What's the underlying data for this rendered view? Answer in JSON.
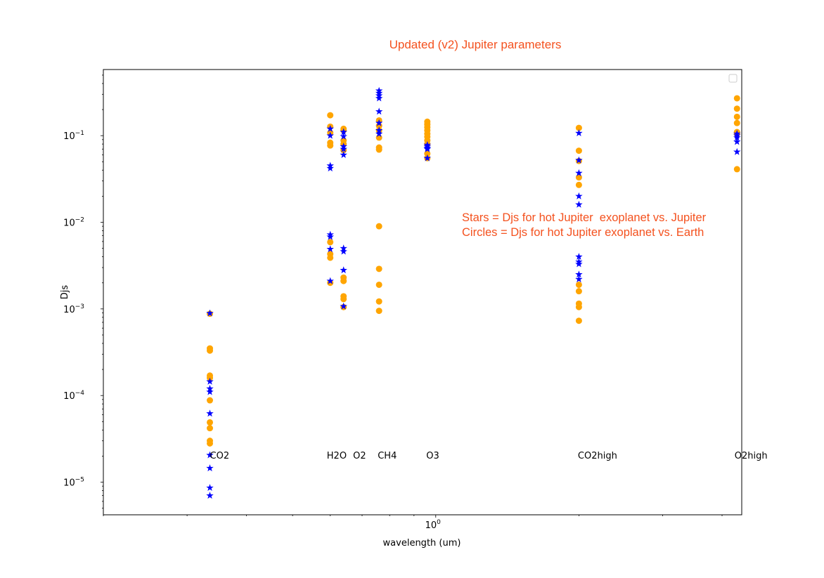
{
  "chart_data": {
    "type": "scatter",
    "title": "Updated (v2) Jupiter parameters",
    "xlabel": "wavelength (um)",
    "ylabel": "Djs",
    "xscale": "log",
    "yscale": "log",
    "xlim": [
      0.2,
      4.4
    ],
    "ylim": [
      4.2e-06,
      0.58
    ],
    "x_tick_labels": [
      {
        "value": 1,
        "base": "10",
        "exp": "0"
      }
    ],
    "y_tick_labels": [
      {
        "value": 0.1,
        "base": "10",
        "exp": "−1"
      },
      {
        "value": 0.01,
        "base": "10",
        "exp": "−2"
      },
      {
        "value": 0.001,
        "base": "10",
        "exp": "−3"
      },
      {
        "value": 0.0001,
        "base": "10",
        "exp": "−4"
      },
      {
        "value": 1e-05,
        "base": "10",
        "exp": "−5"
      }
    ],
    "legend": "top-right, empty",
    "grid": false,
    "annotations": [
      {
        "text": "Stars = Djs for hot Jupiter  exoplanet vs. Jupiter"
      },
      {
        "text": "Circles = Djs for hot Jupiter exoplanet vs. Earth"
      }
    ],
    "gas_labels": [
      {
        "text": "CO2",
        "x": 0.335,
        "y": 2.05e-05
      },
      {
        "text": "H2O",
        "x": 0.59,
        "y": 2.05e-05
      },
      {
        "text": "O2",
        "x": 0.67,
        "y": 2.05e-05
      },
      {
        "text": "CH4",
        "x": 0.755,
        "y": 2.05e-05
      },
      {
        "text": "O3",
        "x": 0.955,
        "y": 2.05e-05
      },
      {
        "text": "CO2high",
        "x": 1.99,
        "y": 2.05e-05
      },
      {
        "text": "O2high",
        "x": 4.25,
        "y": 2.05e-05
      }
    ],
    "series": [
      {
        "marker": "circle",
        "color": "#ffa500",
        "points": [
          {
            "x": 0.335,
            "y": 0.00088
          },
          {
            "x": 0.335,
            "y": 0.00035
          },
          {
            "x": 0.335,
            "y": 0.00033
          },
          {
            "x": 0.335,
            "y": 0.00017
          },
          {
            "x": 0.335,
            "y": 0.00016
          },
          {
            "x": 0.335,
            "y": 8.8e-05
          },
          {
            "x": 0.335,
            "y": 4.9e-05
          },
          {
            "x": 0.335,
            "y": 4.2e-05
          },
          {
            "x": 0.335,
            "y": 3e-05
          },
          {
            "x": 0.335,
            "y": 2.8e-05
          },
          {
            "x": 0.6,
            "y": 0.172
          },
          {
            "x": 0.6,
            "y": 0.127
          },
          {
            "x": 0.6,
            "y": 0.108
          },
          {
            "x": 0.6,
            "y": 0.083
          },
          {
            "x": 0.6,
            "y": 0.077
          },
          {
            "x": 0.6,
            "y": 0.0059
          },
          {
            "x": 0.6,
            "y": 0.0043
          },
          {
            "x": 0.6,
            "y": 0.0039
          },
          {
            "x": 0.6,
            "y": 0.002
          },
          {
            "x": 0.64,
            "y": 0.12
          },
          {
            "x": 0.64,
            "y": 0.115
          },
          {
            "x": 0.64,
            "y": 0.088
          },
          {
            "x": 0.64,
            "y": 0.08
          },
          {
            "x": 0.64,
            "y": 0.068
          },
          {
            "x": 0.64,
            "y": 0.0023
          },
          {
            "x": 0.64,
            "y": 0.0021
          },
          {
            "x": 0.64,
            "y": 0.0014
          },
          {
            "x": 0.64,
            "y": 0.0013
          },
          {
            "x": 0.64,
            "y": 0.00105
          },
          {
            "x": 0.76,
            "y": 0.15
          },
          {
            "x": 0.76,
            "y": 0.13
          },
          {
            "x": 0.76,
            "y": 0.115
          },
          {
            "x": 0.76,
            "y": 0.095
          },
          {
            "x": 0.76,
            "y": 0.073
          },
          {
            "x": 0.76,
            "y": 0.069
          },
          {
            "x": 0.76,
            "y": 0.009
          },
          {
            "x": 0.76,
            "y": 0.0029
          },
          {
            "x": 0.76,
            "y": 0.0019
          },
          {
            "x": 0.76,
            "y": 0.00122
          },
          {
            "x": 0.76,
            "y": 0.00095
          },
          {
            "x": 0.96,
            "y": 0.145
          },
          {
            "x": 0.96,
            "y": 0.135
          },
          {
            "x": 0.96,
            "y": 0.125
          },
          {
            "x": 0.96,
            "y": 0.115
          },
          {
            "x": 0.96,
            "y": 0.105
          },
          {
            "x": 0.96,
            "y": 0.097
          },
          {
            "x": 0.96,
            "y": 0.088
          },
          {
            "x": 0.96,
            "y": 0.08
          },
          {
            "x": 0.96,
            "y": 0.062
          },
          {
            "x": 0.96,
            "y": 0.055
          },
          {
            "x": 2.0,
            "y": 0.123
          },
          {
            "x": 2.0,
            "y": 0.067
          },
          {
            "x": 2.0,
            "y": 0.051
          },
          {
            "x": 2.0,
            "y": 0.033
          },
          {
            "x": 2.0,
            "y": 0.027
          },
          {
            "x": 2.0,
            "y": 0.0019
          },
          {
            "x": 2.0,
            "y": 0.0016
          },
          {
            "x": 2.0,
            "y": 0.00115
          },
          {
            "x": 2.0,
            "y": 0.00105
          },
          {
            "x": 2.0,
            "y": 0.00073
          },
          {
            "x": 4.3,
            "y": 0.27
          },
          {
            "x": 4.3,
            "y": 0.205
          },
          {
            "x": 4.3,
            "y": 0.165
          },
          {
            "x": 4.3,
            "y": 0.14
          },
          {
            "x": 4.3,
            "y": 0.11
          },
          {
            "x": 4.3,
            "y": 0.105
          },
          {
            "x": 4.3,
            "y": 0.041
          }
        ]
      },
      {
        "marker": "star",
        "color": "#0000ff",
        "points": [
          {
            "x": 0.335,
            "y": 0.00089
          },
          {
            "x": 0.335,
            "y": 0.000145
          },
          {
            "x": 0.335,
            "y": 0.00012
          },
          {
            "x": 0.335,
            "y": 0.00011
          },
          {
            "x": 0.335,
            "y": 6.2e-05
          },
          {
            "x": 0.335,
            "y": 2.05e-05
          },
          {
            "x": 0.335,
            "y": 1.45e-05
          },
          {
            "x": 0.335,
            "y": 8.6e-06
          },
          {
            "x": 0.335,
            "y": 7e-06
          },
          {
            "x": 0.6,
            "y": 0.12
          },
          {
            "x": 0.6,
            "y": 0.1
          },
          {
            "x": 0.6,
            "y": 0.045
          },
          {
            "x": 0.6,
            "y": 0.042
          },
          {
            "x": 0.6,
            "y": 0.0072
          },
          {
            "x": 0.6,
            "y": 0.0068
          },
          {
            "x": 0.6,
            "y": 0.0049
          },
          {
            "x": 0.6,
            "y": 0.0021
          },
          {
            "x": 0.64,
            "y": 0.11
          },
          {
            "x": 0.64,
            "y": 0.098
          },
          {
            "x": 0.64,
            "y": 0.075
          },
          {
            "x": 0.64,
            "y": 0.07
          },
          {
            "x": 0.64,
            "y": 0.06
          },
          {
            "x": 0.64,
            "y": 0.005
          },
          {
            "x": 0.64,
            "y": 0.0046
          },
          {
            "x": 0.64,
            "y": 0.0028
          },
          {
            "x": 0.64,
            "y": 0.00107
          },
          {
            "x": 0.76,
            "y": 0.33
          },
          {
            "x": 0.76,
            "y": 0.31
          },
          {
            "x": 0.76,
            "y": 0.29
          },
          {
            "x": 0.76,
            "y": 0.27
          },
          {
            "x": 0.76,
            "y": 0.19
          },
          {
            "x": 0.76,
            "y": 0.14
          },
          {
            "x": 0.76,
            "y": 0.115
          },
          {
            "x": 0.76,
            "y": 0.105
          },
          {
            "x": 0.96,
            "y": 0.078
          },
          {
            "x": 0.96,
            "y": 0.075
          },
          {
            "x": 0.96,
            "y": 0.072
          },
          {
            "x": 0.96,
            "y": 0.07
          },
          {
            "x": 0.96,
            "y": 0.055
          },
          {
            "x": 2.0,
            "y": 0.107
          },
          {
            "x": 2.0,
            "y": 0.052
          },
          {
            "x": 2.0,
            "y": 0.037
          },
          {
            "x": 2.0,
            "y": 0.02
          },
          {
            "x": 2.0,
            "y": 0.016
          },
          {
            "x": 2.0,
            "y": 0.004
          },
          {
            "x": 2.0,
            "y": 0.0035
          },
          {
            "x": 2.0,
            "y": 0.0033
          },
          {
            "x": 2.0,
            "y": 0.0025
          },
          {
            "x": 2.0,
            "y": 0.0022
          },
          {
            "x": 4.3,
            "y": 0.105
          },
          {
            "x": 4.3,
            "y": 0.1
          },
          {
            "x": 4.3,
            "y": 0.095
          },
          {
            "x": 4.3,
            "y": 0.085
          },
          {
            "x": 4.3,
            "y": 0.065
          }
        ]
      }
    ]
  }
}
